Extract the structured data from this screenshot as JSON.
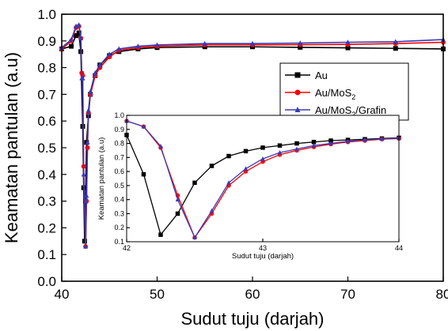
{
  "chart_data": [
    {
      "type": "line",
      "xlabel": "Sudut tuju (darjah)",
      "ylabel": "Keamatan pantulan (a.u)",
      "xlim": [
        40,
        80
      ],
      "ylim": [
        0.0,
        1.0
      ],
      "xticks": [
        "40",
        "50",
        "60",
        "70",
        "80"
      ],
      "yticks": [
        "0.0",
        "0.1",
        "0.2",
        "0.3",
        "0.4",
        "0.5",
        "0.6",
        "0.7",
        "0.8",
        "0.9",
        "1.0"
      ],
      "legend_position": "right",
      "series": [
        {
          "name": "Au",
          "color": "#000000",
          "marker": "square",
          "x": [
            40,
            41,
            41.5,
            41.8,
            42.0,
            42.2,
            42.3,
            42.4,
            42.5,
            42.6,
            42.8,
            43.0,
            43.5,
            44,
            45,
            46,
            48,
            50,
            55,
            60,
            65,
            70,
            75,
            80
          ],
          "y": [
            0.87,
            0.88,
            0.92,
            0.93,
            0.86,
            0.58,
            0.35,
            0.15,
            0.3,
            0.52,
            0.62,
            0.7,
            0.77,
            0.81,
            0.845,
            0.86,
            0.87,
            0.875,
            0.878,
            0.878,
            0.876,
            0.874,
            0.872,
            0.87
          ]
        },
        {
          "name": "Au/MoS2",
          "color": "#ff0000",
          "marker": "circle",
          "x": [
            40,
            41,
            41.5,
            41.8,
            42.0,
            42.1,
            42.2,
            42.3,
            42.5,
            42.6,
            42.7,
            42.8,
            43.0,
            43.5,
            44,
            45,
            46,
            48,
            50,
            55,
            60,
            65,
            70,
            75,
            80
          ],
          "y": [
            0.87,
            0.9,
            0.95,
            0.955,
            0.91,
            0.78,
            0.77,
            0.43,
            0.13,
            0.3,
            0.5,
            0.63,
            0.7,
            0.77,
            0.8,
            0.84,
            0.865,
            0.875,
            0.88,
            0.885,
            0.885,
            0.886,
            0.887,
            0.89,
            0.895
          ]
        },
        {
          "name": "Au/MoS2/Grafin",
          "color": "#3a3ab5",
          "marker": "triangle",
          "x": [
            40,
            41,
            41.5,
            41.8,
            42.0,
            42.1,
            42.2,
            42.3,
            42.5,
            42.6,
            42.7,
            42.8,
            43.0,
            43.5,
            44,
            45,
            46,
            48,
            50,
            55,
            60,
            65,
            70,
            75,
            80
          ],
          "y": [
            0.875,
            0.905,
            0.955,
            0.96,
            0.91,
            0.76,
            0.76,
            0.4,
            0.13,
            0.32,
            0.52,
            0.64,
            0.71,
            0.78,
            0.81,
            0.85,
            0.87,
            0.88,
            0.885,
            0.89,
            0.89,
            0.892,
            0.895,
            0.897,
            0.905
          ]
        }
      ]
    },
    {
      "type": "line",
      "xlabel": "Sudut tuju (darjah)",
      "ylabel": "Keamatan pantulan (a.u)",
      "xlim": [
        42,
        44
      ],
      "ylim": [
        0.1,
        1.0
      ],
      "xticks": [
        "42",
        "43",
        "44"
      ],
      "yticks": [
        "0.1",
        "0.2",
        "0.3",
        "0.4",
        "0.5",
        "0.6",
        "0.7",
        "0.8",
        "0.9",
        "1.0"
      ],
      "series": [
        {
          "name": "Au",
          "color": "#000000",
          "marker": "square",
          "x": [
            42.0,
            42.125,
            42.25,
            42.375,
            42.5,
            42.625,
            42.75,
            42.875,
            43.0,
            43.125,
            43.25,
            43.375,
            43.5,
            43.625,
            43.75,
            43.875,
            44.0
          ],
          "y": [
            0.86,
            0.58,
            0.15,
            0.3,
            0.52,
            0.64,
            0.71,
            0.745,
            0.77,
            0.785,
            0.8,
            0.81,
            0.82,
            0.825,
            0.83,
            0.835,
            0.84
          ]
        },
        {
          "name": "Au/MoS2",
          "color": "#ff0000",
          "marker": "circle",
          "x": [
            42.0,
            42.125,
            42.25,
            42.375,
            42.5,
            42.625,
            42.75,
            42.875,
            43.0,
            43.125,
            43.25,
            43.375,
            43.5,
            43.625,
            43.75,
            43.875,
            44.0
          ],
          "y": [
            0.96,
            0.92,
            0.77,
            0.43,
            0.13,
            0.3,
            0.5,
            0.6,
            0.67,
            0.72,
            0.75,
            0.775,
            0.795,
            0.81,
            0.82,
            0.83,
            0.835
          ]
        },
        {
          "name": "Au/MoS2/Grafin",
          "color": "#3a3ab5",
          "marker": "triangle",
          "x": [
            42.0,
            42.125,
            42.25,
            42.375,
            42.5,
            42.625,
            42.75,
            42.875,
            43.0,
            43.125,
            43.25,
            43.375,
            43.5,
            43.625,
            43.75,
            43.875,
            44.0
          ],
          "y": [
            0.96,
            0.92,
            0.78,
            0.4,
            0.13,
            0.32,
            0.52,
            0.62,
            0.69,
            0.735,
            0.76,
            0.785,
            0.8,
            0.815,
            0.825,
            0.832,
            0.838
          ]
        }
      ]
    }
  ],
  "legend": {
    "entries": [
      {
        "main": "Au",
        "sub": "",
        "tail": ""
      },
      {
        "main": "Au/MoS",
        "sub": "2",
        "tail": ""
      },
      {
        "main": "Au/MoS",
        "sub": "2",
        "tail": "/Grafin"
      }
    ]
  }
}
